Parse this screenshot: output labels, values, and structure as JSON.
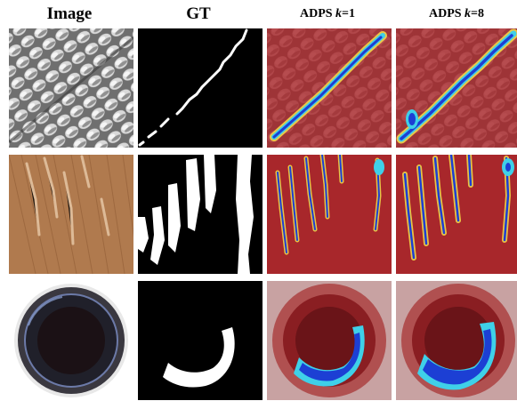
{
  "figure": {
    "headers": {
      "image": "Image",
      "gt": "GT",
      "adps_k1_prefix": "ADPS ",
      "adps_k1_var": "k",
      "adps_k1_suffix": "=1",
      "adps_k8_prefix": "ADPS ",
      "adps_k8_var": "k",
      "adps_k8_suffix": "=8"
    },
    "rows": [
      {
        "texture": "metal-grid",
        "defect": "scratch"
      },
      {
        "texture": "wood",
        "defect": "streaks"
      },
      {
        "texture": "bottle",
        "defect": "crescent"
      }
    ],
    "colors": {
      "heatmap_bg": "#a8272b",
      "heatmap_hot": "#1c3fd4",
      "heatmap_mid": "#3fd0e8",
      "heatmap_warm": "#f4e04a"
    }
  }
}
